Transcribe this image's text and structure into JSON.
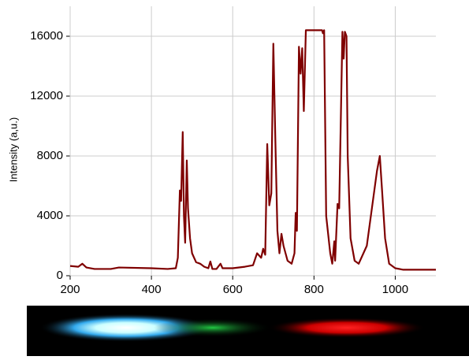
{
  "chart_data": {
    "type": "line",
    "y_label": "Intensity (a,u.)",
    "x": [
      200,
      220,
      230,
      240,
      260,
      300,
      320,
      400,
      440,
      460,
      465,
      470,
      473,
      477,
      480,
      483,
      487,
      490,
      495,
      500,
      510,
      520,
      530,
      540,
      545,
      550,
      560,
      570,
      575,
      600,
      630,
      650,
      660,
      670,
      675,
      680,
      685,
      690,
      695,
      700,
      705,
      710,
      715,
      720,
      725,
      735,
      745,
      752,
      755,
      758,
      763,
      767,
      771,
      775,
      780,
      800,
      820,
      822,
      825,
      830,
      840,
      845,
      850,
      852,
      858,
      862,
      870,
      873,
      876,
      880,
      883,
      890,
      900,
      910,
      930,
      945,
      955,
      962,
      968,
      975,
      985,
      1000,
      1020,
      1100
    ],
    "series": [
      {
        "color": "#7f0000",
        "values": [
          650,
          600,
          800,
          550,
          450,
          450,
          550,
          500,
          450,
          500,
          1200,
          5700,
          5000,
          9600,
          4000,
          2200,
          7700,
          4500,
          2500,
          1500,
          900,
          800,
          600,
          500,
          950,
          450,
          450,
          800,
          500,
          500,
          600,
          700,
          1500,
          1200,
          1800,
          1400,
          8800,
          4700,
          5500,
          15500,
          9000,
          3000,
          1500,
          2800,
          2000,
          1000,
          800,
          1500,
          4200,
          3000,
          15300,
          13500,
          15200,
          11000,
          16400,
          16400,
          16400,
          16200,
          16400,
          4000,
          1500,
          800,
          2300,
          1000,
          4800,
          4500,
          16300,
          14500,
          16300,
          16000,
          8000,
          2500,
          1000,
          800,
          2000,
          5000,
          7000,
          8000,
          5500,
          2500,
          800,
          500,
          400,
          400
        ]
      }
    ],
    "xlim": [
      200,
      1100
    ],
    "ylim": [
      0,
      18000
    ],
    "xticks": [
      200,
      400,
      600,
      800,
      1000
    ],
    "yticks": [
      0,
      4000,
      8000,
      12000,
      16000
    ],
    "grid": true
  }
}
